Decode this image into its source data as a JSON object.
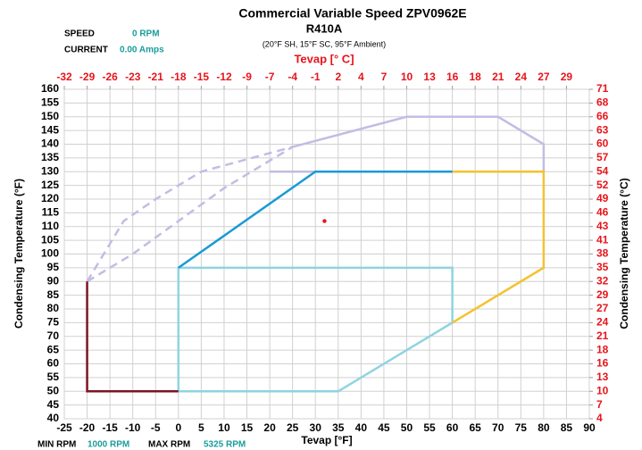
{
  "chart_data": {
    "type": "line",
    "title": "Commercial Variable Speed ZPV0962E",
    "subtitle": "R410A",
    "conditions": "(20°F SH, 15°F SC, 95°F Ambient)",
    "x_label": "Tevap [°F]",
    "x2_label": "Tevap [° C]",
    "y_label": "Condensing Temperature (°F)",
    "y2_label": "Condensing Temperature (°C)",
    "info": {
      "speed_label": "SPEED",
      "speed": "0 RPM",
      "current_label": "CURRENT",
      "current": "0.00 Amps",
      "min_label": "MIN RPM",
      "min": "1000 RPM",
      "max_label": "MAX RPM",
      "max": "5325 RPM"
    },
    "grid": true,
    "xlim": [
      -25,
      90
    ],
    "xticks": [
      -25,
      -20,
      -15,
      -10,
      -5,
      0,
      5,
      10,
      15,
      20,
      25,
      30,
      35,
      40,
      45,
      50,
      55,
      60,
      65,
      70,
      75,
      80,
      85,
      90
    ],
    "ylim": [
      40,
      160
    ],
    "yticks": [
      40,
      45,
      50,
      55,
      60,
      65,
      70,
      75,
      80,
      85,
      90,
      95,
      100,
      105,
      110,
      115,
      120,
      125,
      130,
      135,
      140,
      145,
      150,
      155,
      160
    ],
    "x2lim": [
      -31.67,
      32.22
    ],
    "x2ticks": [
      {
        "value": -31.67,
        "label": "-32"
      },
      {
        "value": -28.89,
        "label": "-29"
      },
      {
        "value": -26.11,
        "label": "-26"
      },
      {
        "value": -23.33,
        "label": "-23"
      },
      {
        "value": -20.56,
        "label": "-21"
      },
      {
        "value": -17.78,
        "label": "-18"
      },
      {
        "value": -15,
        "label": "-15"
      },
      {
        "value": -12.22,
        "label": "-12"
      },
      {
        "value": -9.44,
        "label": "-9"
      },
      {
        "value": -6.67,
        "label": "-7"
      },
      {
        "value": -3.89,
        "label": "-4"
      },
      {
        "value": -1.11,
        "label": "-1"
      },
      {
        "value": 1.67,
        "label": "2"
      },
      {
        "value": 4.44,
        "label": "4"
      },
      {
        "value": 7.22,
        "label": "7"
      },
      {
        "value": 10,
        "label": "10"
      },
      {
        "value": 12.78,
        "label": "13"
      },
      {
        "value": 15.56,
        "label": "16"
      },
      {
        "value": 18.33,
        "label": "18"
      },
      {
        "value": 21.11,
        "label": "21"
      },
      {
        "value": 23.89,
        "label": "24"
      },
      {
        "value": 26.67,
        "label": "27"
      },
      {
        "value": 29.44,
        "label": "29"
      }
    ],
    "y2lim": [
      4.44,
      71.11
    ],
    "y2ticks": [
      {
        "value": 4.44,
        "label": "4"
      },
      {
        "value": 7.22,
        "label": "7"
      },
      {
        "value": 10,
        "label": "10"
      },
      {
        "value": 12.78,
        "label": "13"
      },
      {
        "value": 15.56,
        "label": "16"
      },
      {
        "value": 18.33,
        "label": "18"
      },
      {
        "value": 21.11,
        "label": "21"
      },
      {
        "value": 23.89,
        "label": "24"
      },
      {
        "value": 26.67,
        "label": "27"
      },
      {
        "value": 29.44,
        "label": "29"
      },
      {
        "value": 32.22,
        "label": "32"
      },
      {
        "value": 35,
        "label": "35"
      },
      {
        "value": 37.78,
        "label": "38"
      },
      {
        "value": 40.56,
        "label": "41"
      },
      {
        "value": 43.33,
        "label": "43"
      },
      {
        "value": 46.11,
        "label": "46"
      },
      {
        "value": 48.89,
        "label": "49"
      },
      {
        "value": 51.67,
        "label": "52"
      },
      {
        "value": 54.44,
        "label": "54"
      },
      {
        "value": 57.22,
        "label": "57"
      },
      {
        "value": 60,
        "label": "60"
      },
      {
        "value": 62.78,
        "label": "63"
      },
      {
        "value": 65.56,
        "label": "66"
      },
      {
        "value": 68.33,
        "label": "68"
      },
      {
        "value": 71.11,
        "label": "71"
      }
    ],
    "series": [
      {
        "color": "#c3bce3",
        "dashed": true,
        "x": [
          -20,
          -12,
          -5,
          5,
          25
        ],
        "values": [
          90,
          112,
          120,
          130,
          139
        ]
      },
      {
        "color": "#c3bce3",
        "dashed": true,
        "x": [
          -20,
          -10,
          0,
          10,
          25
        ],
        "values": [
          90,
          100,
          112,
          124,
          139
        ]
      },
      {
        "color": "#c3bce3",
        "x": [
          25,
          50,
          70,
          80,
          80
        ],
        "values": [
          139,
          150,
          150,
          140,
          130
        ]
      },
      {
        "color": "#c3bce3",
        "x": [
          20,
          30
        ],
        "values": [
          130,
          130
        ]
      },
      {
        "color": "#8fd4e0",
        "x": [
          0,
          0,
          60,
          60,
          35,
          0
        ],
        "values": [
          50,
          95,
          95,
          75,
          50,
          50
        ]
      },
      {
        "color": "#f5c22e",
        "x": [
          60,
          80,
          80,
          60
        ],
        "values": [
          130,
          130,
          95,
          75
        ]
      },
      {
        "color": "#1a9ad6",
        "x": [
          0,
          30,
          60
        ],
        "values": [
          95,
          130,
          130
        ]
      },
      {
        "color": "#7c1426",
        "x": [
          -20,
          -20,
          0
        ],
        "values": [
          90,
          50,
          50
        ]
      }
    ],
    "points": {
      "color": "#e8141b",
      "x": [
        32
      ],
      "values": [
        112
      ]
    }
  }
}
